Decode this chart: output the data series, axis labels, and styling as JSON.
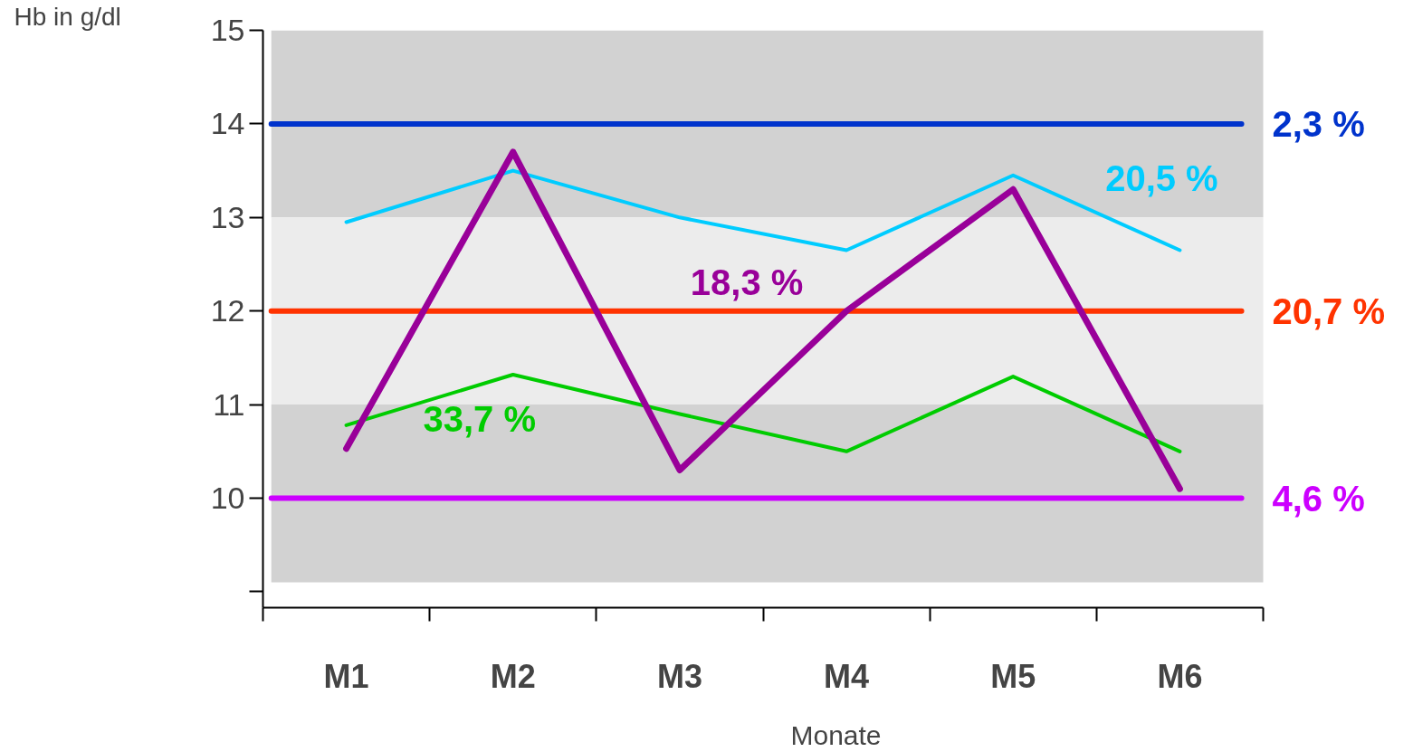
{
  "chart_data": {
    "type": "line",
    "xlabel": "Monate",
    "ylabel": "Hb in g/dl",
    "categories": [
      "M1",
      "M2",
      "M3",
      "M4",
      "M5",
      "M6"
    ],
    "ylim": [
      8.83,
      15
    ],
    "yticks": [
      {
        "value": 9,
        "label": null
      },
      10,
      11,
      12,
      13,
      14,
      15
    ],
    "grid": false,
    "marker": "none",
    "line_style": "solid",
    "bands": [
      {
        "axis": "y",
        "from": 13,
        "to": 15,
        "color": "#d2d2d2"
      },
      {
        "axis": "y",
        "from": 11,
        "to": 13,
        "color": "#ececec"
      },
      {
        "axis": "y",
        "from": 9.1,
        "to": 11,
        "color": "#d2d2d2"
      }
    ],
    "ref_lines": [
      {
        "axis": "y",
        "value": 14,
        "color": "#0033cc"
      },
      {
        "axis": "y",
        "value": 12,
        "color": "#ff3300"
      },
      {
        "axis": "y",
        "value": 10,
        "color": "#cc00ff"
      }
    ],
    "series": [
      {
        "name": "20,5 %",
        "color": "#00ccff",
        "values": [
          12.95,
          13.5,
          13.0,
          12.65,
          13.45,
          12.65
        ]
      },
      {
        "name": "33,7 %",
        "color": "#00cc00",
        "values": [
          10.78,
          11.32,
          10.9,
          10.5,
          11.3,
          10.5
        ]
      },
      {
        "name": "18,3 %",
        "color": "#990099",
        "values": [
          10.53,
          13.7,
          10.3,
          12.0,
          13.3,
          10.1
        ]
      }
    ],
    "annotations": [
      "2,3 %",
      "20,7 %",
      "4,6 %"
    ]
  }
}
